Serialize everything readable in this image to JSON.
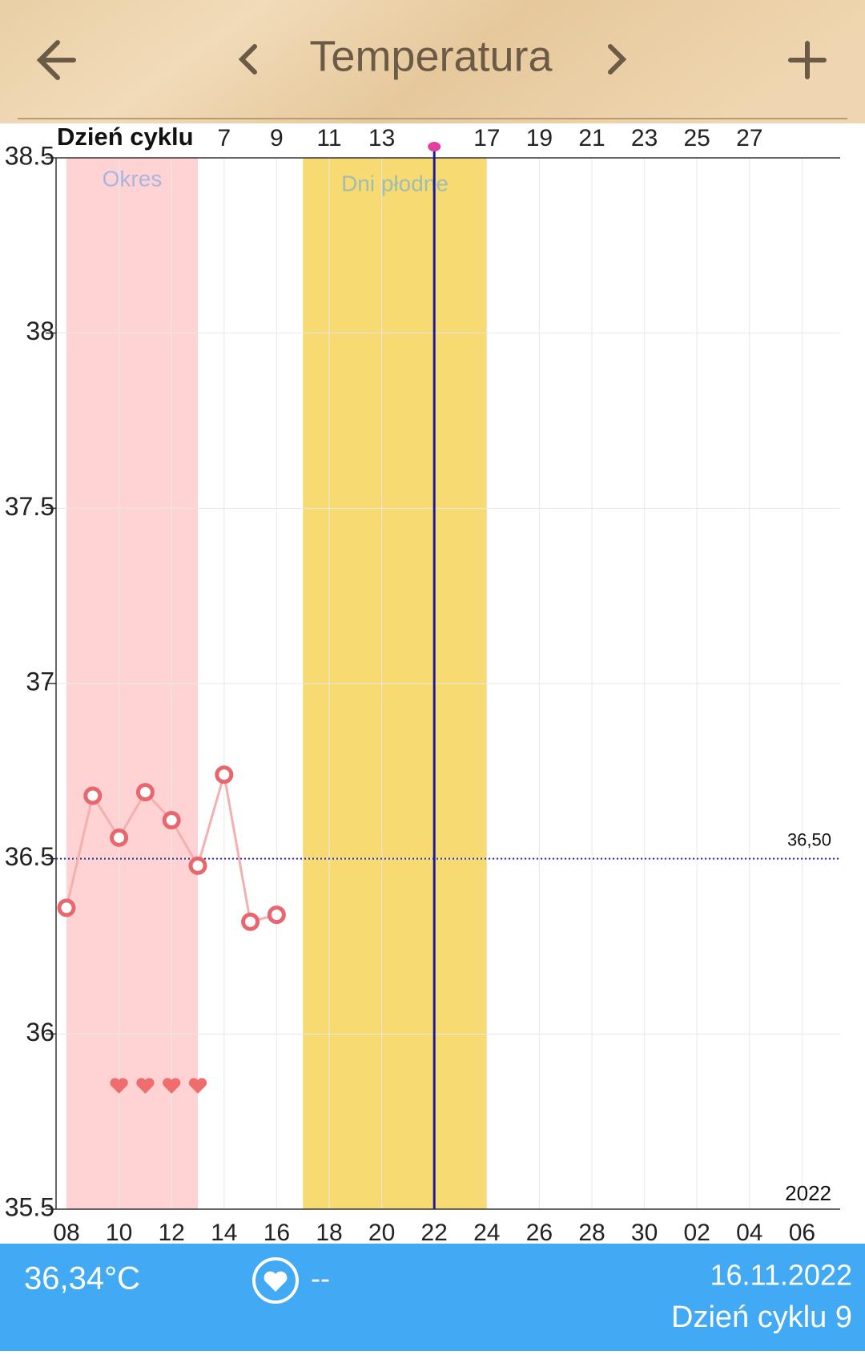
{
  "header": {
    "title": "Temperatura"
  },
  "chart_data": {
    "type": "line",
    "axis_title_top": "Dzień cyklu",
    "categories": [
      "08",
      null,
      "10",
      null,
      "12",
      null,
      "14",
      null,
      "16",
      null,
      "18",
      null,
      "20",
      null,
      "22",
      null,
      "24",
      null,
      "26",
      null,
      "28",
      null,
      "30",
      null,
      "02",
      null,
      "04",
      null,
      "06",
      null
    ],
    "top_categories": [
      null,
      null,
      null,
      null,
      null,
      null,
      "7",
      null,
      "9",
      null,
      "11",
      null,
      "13",
      null,
      null,
      null,
      "17",
      null,
      "19",
      null,
      "21",
      null,
      "23",
      null,
      "25",
      null,
      "27",
      null,
      null,
      null
    ],
    "series": [
      {
        "name": "Temperatura",
        "color": "#e8666e",
        "values": [
          36.36,
          36.68,
          36.56,
          36.69,
          36.61,
          36.48,
          36.74,
          36.32,
          36.34,
          null,
          null,
          null,
          null,
          null,
          null,
          null,
          null,
          null,
          null,
          null,
          null,
          null,
          null,
          null,
          null,
          null,
          null,
          null,
          null,
          null
        ]
      }
    ],
    "ylim": [
      35.5,
      38.5
    ],
    "yticks": [
      35.5,
      36,
      36.5,
      37,
      37.5,
      38,
      38.5
    ],
    "grid": true,
    "bands": [
      {
        "label": "Okres",
        "start": 0,
        "end": 5,
        "color": "#ffd3d3",
        "label_color": "#a9b6e0"
      },
      {
        "label": "Dni płodne",
        "start": 9,
        "end": 16,
        "color": "#f8da72",
        "label_color": "#9fbdb0"
      }
    ],
    "reference": {
      "value": 36.5,
      "label": "36,50"
    },
    "marker_index": 14,
    "heart_days": [
      2,
      3,
      4,
      5
    ],
    "year": "2022"
  },
  "footer": {
    "temperature": "36,34°C",
    "pulse": "--",
    "date": "16.11.2022",
    "cycle_day": "Dzień cyklu 9"
  }
}
